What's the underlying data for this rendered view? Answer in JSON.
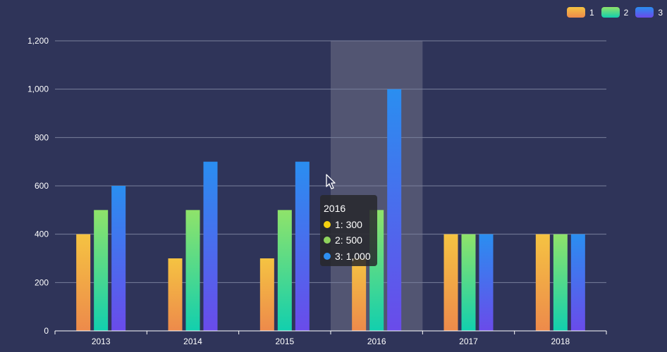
{
  "legend": {
    "items": [
      {
        "label": "1",
        "color_top": "#f5c342",
        "color_bottom": "#ed8a4b"
      },
      {
        "label": "2",
        "color_top": "#8fe36a",
        "color_bottom": "#12cfae"
      },
      {
        "label": "3",
        "color_top": "#2a8ef0",
        "color_bottom": "#6a4bea"
      }
    ]
  },
  "tooltip": {
    "title": "2016",
    "rows": [
      {
        "label": "1: 300",
        "color": "#f5d10f"
      },
      {
        "label": "2: 500",
        "color": "#8fd35c"
      },
      {
        "label": "3: 1,000",
        "color": "#2e8ff0"
      }
    ]
  },
  "chart_data": {
    "type": "bar",
    "categories": [
      "2013",
      "2014",
      "2015",
      "2016",
      "2017",
      "2018"
    ],
    "series": [
      {
        "name": "1",
        "values": [
          400,
          300,
          300,
          300,
          400,
          400
        ]
      },
      {
        "name": "2",
        "values": [
          500,
          500,
          500,
          500,
          400,
          400
        ]
      },
      {
        "name": "3",
        "values": [
          600,
          700,
          700,
          1000,
          400,
          400
        ]
      }
    ],
    "ylim": [
      0,
      1200
    ],
    "yticks": [
      0,
      200,
      400,
      600,
      800,
      1000,
      1200
    ],
    "ytick_labels": [
      "0",
      "200",
      "400",
      "600",
      "800",
      "1,000",
      "1,200"
    ],
    "grid": true,
    "highlighted_category": "2016",
    "legend_position": "top-right",
    "colors": {
      "background": "#2f3459",
      "axis": "#ffffff",
      "grid": "#7a7f9c",
      "highlight": "rgba(150,150,160,0.35)"
    }
  }
}
